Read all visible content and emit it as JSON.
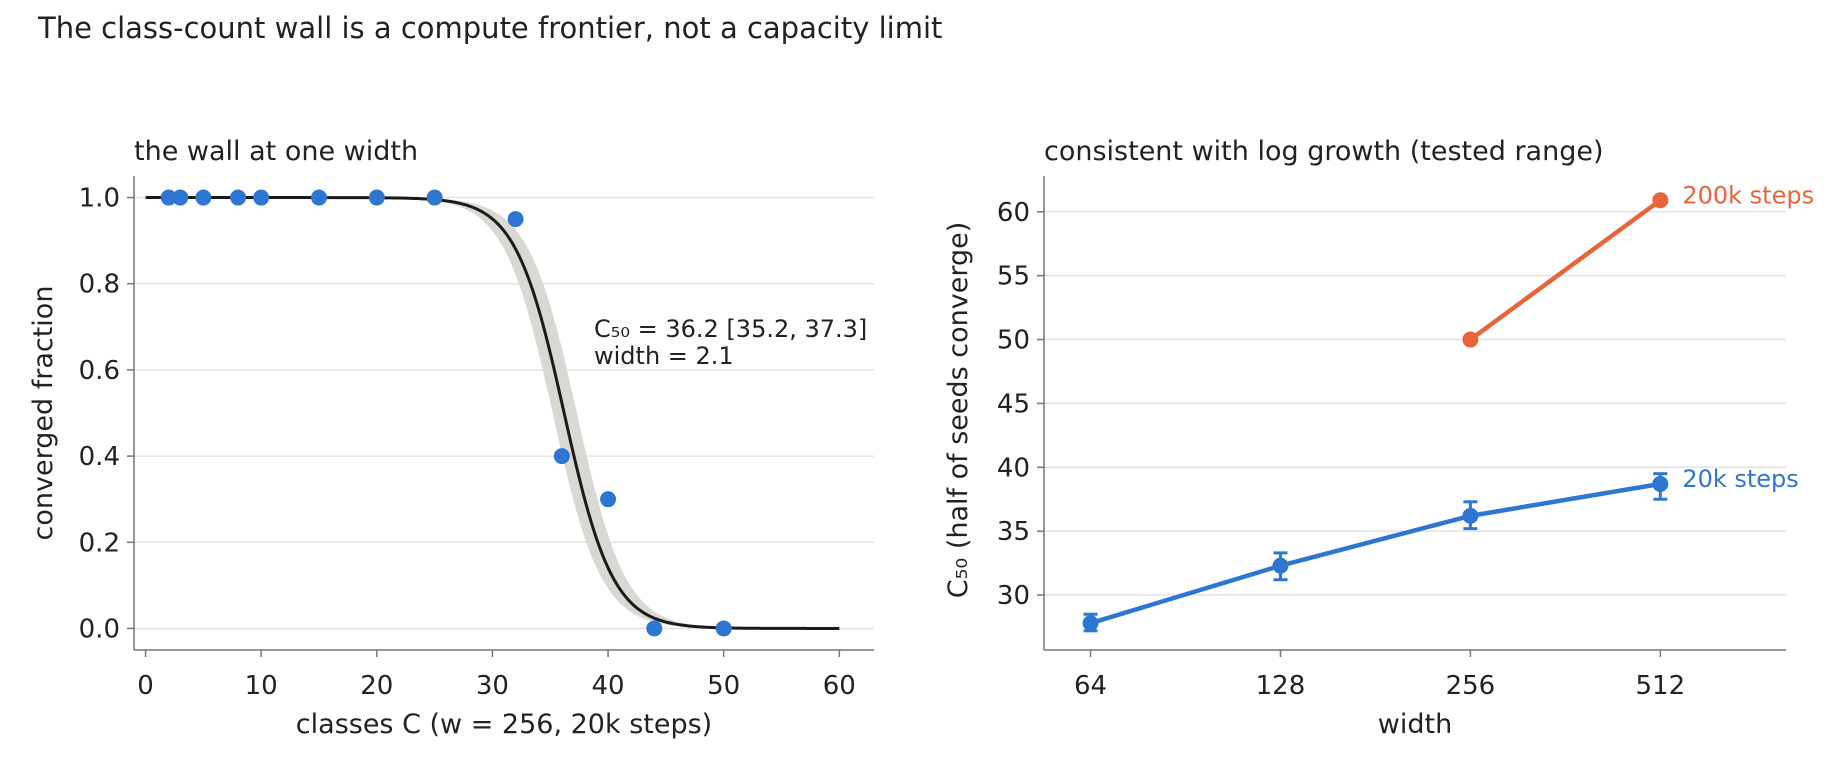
{
  "suptitle": "The class-count wall is a compute frontier, not a capacity limit",
  "colors": {
    "blue": "#2f76d2",
    "orange": "#e8643a",
    "curve": "#1a1a1a",
    "band": "#d9d8d3",
    "grid": "#e3e3e3",
    "axis": "#777777",
    "text": "#222222"
  },
  "chart_data": [
    {
      "type": "scatter",
      "title": "the wall at one width",
      "xlabel": "classes C  (w = 256, 20k steps)",
      "ylabel": "converged fraction",
      "xlim": [
        -1,
        63
      ],
      "ylim": [
        -0.05,
        1.05
      ],
      "xticks": [
        0,
        10,
        20,
        30,
        40,
        50,
        60
      ],
      "yticks": [
        0.0,
        0.2,
        0.4,
        0.6,
        0.8,
        1.0
      ],
      "ytick_labels": [
        "0.0",
        "0.2",
        "0.4",
        "0.6",
        "0.8",
        "1.0"
      ],
      "grid": "horizontal",
      "points": {
        "x": [
          2,
          3,
          5,
          8,
          10,
          15,
          20,
          25,
          32,
          36,
          40,
          44,
          50
        ],
        "y": [
          1.0,
          1.0,
          1.0,
          1.0,
          1.0,
          1.0,
          1.0,
          1.0,
          0.95,
          0.4,
          0.3,
          0.0,
          0.0
        ]
      },
      "fit": {
        "model": "logistic",
        "C50": 36.2,
        "C50_ci": [
          35.2,
          37.3
        ],
        "width": 2.1,
        "x_range": [
          0,
          60
        ]
      },
      "annotation": [
        "C₅₀ = 36.2 [35.2, 37.3]",
        "width = 2.1"
      ]
    },
    {
      "type": "line",
      "title": "consistent with log growth (tested range)",
      "xlabel": "width",
      "ylabel": "C₅₀ (half of seeds converge)",
      "x_scale": "log2",
      "xlim": [
        54,
        810
      ],
      "ylim": [
        25.7,
        62.8
      ],
      "xticks": [
        64,
        128,
        256,
        512
      ],
      "xtick_labels": [
        "64",
        "128",
        "256",
        "512"
      ],
      "yticks": [
        30,
        35,
        40,
        45,
        50,
        55,
        60
      ],
      "ytick_labels": [
        "30",
        "35",
        "40",
        "45",
        "50",
        "55",
        "60"
      ],
      "grid": "horizontal",
      "series": [
        {
          "name": "20k steps",
          "color": "#2f76d2",
          "x": [
            64,
            128,
            256,
            512
          ],
          "y": [
            27.8,
            32.3,
            36.2,
            38.7
          ],
          "err_low": [
            27.2,
            31.2,
            35.2,
            37.5
          ],
          "err_high": [
            28.5,
            33.3,
            37.3,
            39.5
          ]
        },
        {
          "name": "200k steps",
          "color": "#e8643a",
          "x": [
            256,
            512
          ],
          "y": [
            50.0,
            60.9
          ]
        }
      ]
    }
  ]
}
